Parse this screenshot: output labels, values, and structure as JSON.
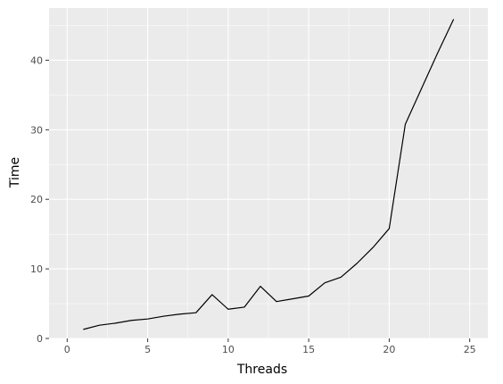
{
  "chart_data": {
    "type": "line",
    "title": "",
    "xlabel": "Threads",
    "ylabel": "Time",
    "xlim": [
      0,
      25
    ],
    "ylim": [
      0,
      47.5
    ],
    "xticks": [
      0,
      5,
      10,
      15,
      20,
      25
    ],
    "xtick_labels": [
      "0",
      "5",
      "10",
      "15",
      "20",
      "25"
    ],
    "yticks": [
      0,
      10,
      20,
      30,
      40
    ],
    "ytick_labels": [
      "0",
      "10",
      "20",
      "30",
      "40"
    ],
    "grid": true,
    "series": [
      {
        "x": [
          1,
          2,
          3,
          4,
          5,
          6,
          7,
          8,
          9,
          10,
          11,
          12,
          13,
          14,
          15,
          16,
          17,
          18,
          19,
          20,
          21,
          22,
          23,
          24
        ],
        "values": [
          1.3,
          1.9,
          2.2,
          2.6,
          2.8,
          3.2,
          3.5,
          3.7,
          6.3,
          4.2,
          4.5,
          7.5,
          5.3,
          5.7,
          6.1,
          8.0,
          8.8,
          10.8,
          13.1,
          15.8,
          30.8,
          35.9,
          41.0,
          45.9
        ],
        "color": "#000000"
      }
    ],
    "colors": {
      "panel_background": "#ebebeb",
      "grid_major": "#ffffff",
      "tick_text": "#4d4d4d"
    }
  }
}
